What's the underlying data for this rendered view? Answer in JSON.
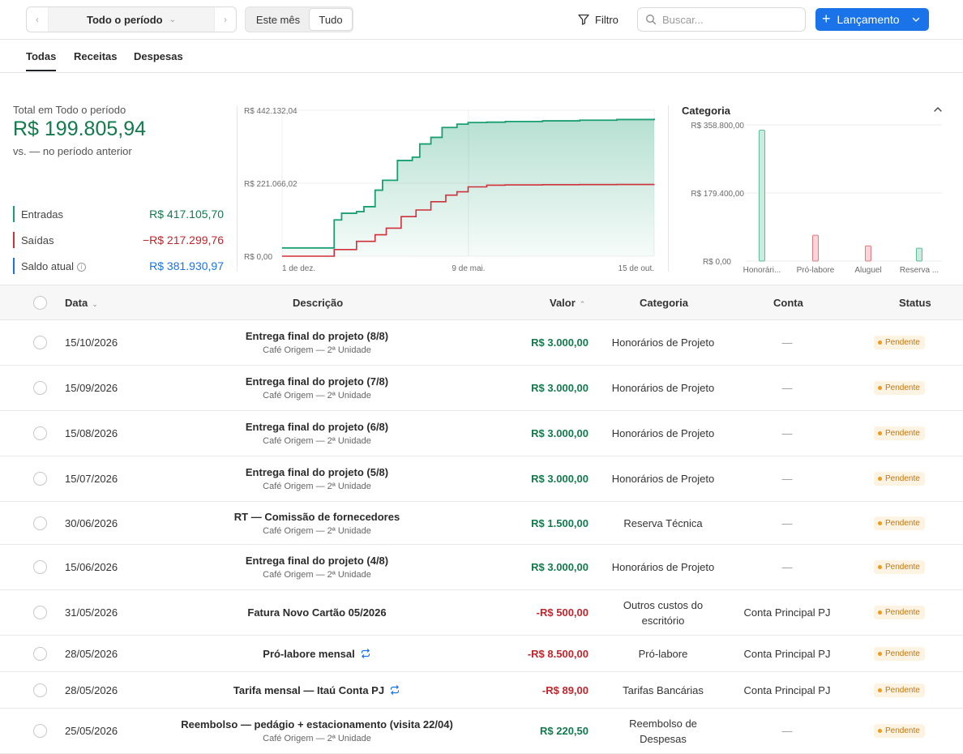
{
  "toolbar": {
    "period_label": "Todo o período",
    "segment": [
      "Este mês",
      "Tudo"
    ],
    "filter_label": "Filtro",
    "search_placeholder": "Buscar...",
    "new_button_label": "Lançamento"
  },
  "tabs": [
    "Todas",
    "Receitas",
    "Despesas"
  ],
  "summary": {
    "total_label": "Total em Todo o período",
    "total_value": "R$ 199.805,94",
    "comparison": "vs. — no período anterior",
    "metrics": [
      {
        "label": "Entradas",
        "value": "R$ 417.105,70",
        "color": "#1a9e73"
      },
      {
        "label": "Saídas",
        "value": "−R$ 217.299,76",
        "color": "#d0303a"
      },
      {
        "label": "Saldo atual",
        "value": "R$ 381.930,97",
        "color": "#1a73e8"
      }
    ]
  },
  "chart_data": [
    {
      "type": "area",
      "y_ticks": [
        "R$ 442.132,04",
        "R$ 221.066,02",
        "R$ 0,00"
      ],
      "x_ticks": [
        "1 de dez.",
        "9 de mai.",
        "15 de out."
      ],
      "ylim": [
        0,
        442132.04
      ],
      "series": [
        {
          "name": "Entradas",
          "color": "#1a9e73",
          "x": [
            0,
            0.1,
            0.14,
            0.16,
            0.2,
            0.22,
            0.25,
            0.27,
            0.31,
            0.35,
            0.37,
            0.4,
            0.43,
            0.47,
            0.5,
            0.55,
            0.6,
            0.7,
            0.8,
            0.9,
            1.0
          ],
          "values": [
            25000,
            25000,
            110000,
            130000,
            135000,
            150000,
            200000,
            230000,
            290000,
            300000,
            340000,
            360000,
            390000,
            400000,
            405000,
            406000,
            408000,
            410000,
            412000,
            414000,
            417105.7
          ]
        },
        {
          "name": "Saídas",
          "color": "#d0303a",
          "x": [
            0,
            0.1,
            0.14,
            0.2,
            0.25,
            0.28,
            0.32,
            0.36,
            0.4,
            0.44,
            0.47,
            0.5,
            0.55,
            0.6,
            0.7,
            0.8,
            0.9,
            1.0
          ],
          "values": [
            0,
            0,
            20000,
            45000,
            65000,
            85000,
            120000,
            140000,
            165000,
            185000,
            195000,
            210000,
            215000,
            216000,
            216500,
            217000,
            217200,
            217299.76
          ]
        }
      ]
    },
    {
      "type": "bar",
      "title": "Categoria",
      "y_ticks": [
        "R$ 358.800,00",
        "R$ 179.400,00",
        "R$ 0,00"
      ],
      "ylim": [
        0,
        358800
      ],
      "categories": [
        "Honorári...",
        "Pró-labore",
        "Aluguel",
        "Reserva ..."
      ],
      "values": [
        345000,
        68000,
        40000,
        34000
      ],
      "colors": [
        "#1a9e73",
        "#d0303a",
        "#d0303a",
        "#1a9e73"
      ]
    }
  ],
  "table": {
    "headers": {
      "date": "Data",
      "desc": "Descrição",
      "value": "Valor",
      "category": "Categoria",
      "account": "Conta",
      "status": "Status"
    },
    "rows": [
      {
        "date": "15/10/2026",
        "title": "Entrega final do projeto (8/8)",
        "subtitle": "Café Origem — 2ª Unidade",
        "value": "R$ 3.000,00",
        "type": "pos",
        "category": "Honorários de Projeto",
        "account": "—",
        "status": "Pendente",
        "recurring": false
      },
      {
        "date": "15/09/2026",
        "title": "Entrega final do projeto (7/8)",
        "subtitle": "Café Origem — 2ª Unidade",
        "value": "R$ 3.000,00",
        "type": "pos",
        "category": "Honorários de Projeto",
        "account": "—",
        "status": "Pendente",
        "recurring": false
      },
      {
        "date": "15/08/2026",
        "title": "Entrega final do projeto (6/8)",
        "subtitle": "Café Origem — 2ª Unidade",
        "value": "R$ 3.000,00",
        "type": "pos",
        "category": "Honorários de Projeto",
        "account": "—",
        "status": "Pendente",
        "recurring": false
      },
      {
        "date": "15/07/2026",
        "title": "Entrega final do projeto (5/8)",
        "subtitle": "Café Origem — 2ª Unidade",
        "value": "R$ 3.000,00",
        "type": "pos",
        "category": "Honorários de Projeto",
        "account": "—",
        "status": "Pendente",
        "recurring": false
      },
      {
        "date": "30/06/2026",
        "title": "RT — Comissão de fornecedores",
        "subtitle": "Café Origem — 2ª Unidade",
        "value": "R$ 1.500,00",
        "type": "pos",
        "category": "Reserva Técnica",
        "account": "—",
        "status": "Pendente",
        "recurring": false
      },
      {
        "date": "15/06/2026",
        "title": "Entrega final do projeto (4/8)",
        "subtitle": "Café Origem — 2ª Unidade",
        "value": "R$ 3.000,00",
        "type": "pos",
        "category": "Honorários de Projeto",
        "account": "—",
        "status": "Pendente",
        "recurring": false
      },
      {
        "date": "31/05/2026",
        "title": "Fatura Novo Cartão 05/2026",
        "subtitle": "",
        "value": "-R$ 500,00",
        "type": "neg",
        "category": "Outros custos do escritório",
        "account": "Conta Principal PJ",
        "status": "Pendente",
        "recurring": false
      },
      {
        "date": "28/05/2026",
        "title": "Pró-labore mensal",
        "subtitle": "",
        "value": "-R$ 8.500,00",
        "type": "neg",
        "category": "Pró-labore",
        "account": "Conta Principal PJ",
        "status": "Pendente",
        "recurring": true
      },
      {
        "date": "28/05/2026",
        "title": "Tarifa mensal — Itaú Conta PJ",
        "subtitle": "",
        "value": "-R$ 89,00",
        "type": "neg",
        "category": "Tarifas Bancárias",
        "account": "Conta Principal PJ",
        "status": "Pendente",
        "recurring": true
      },
      {
        "date": "25/05/2026",
        "title": "Reembolso — pedágio + estacionamento (visita 22/04)",
        "subtitle": "Café Origem — 2ª Unidade",
        "value": "R$ 220,50",
        "type": "pos",
        "category": "Reembolso de Despesas",
        "account": "—",
        "status": "Pendente",
        "recurring": false
      }
    ]
  }
}
